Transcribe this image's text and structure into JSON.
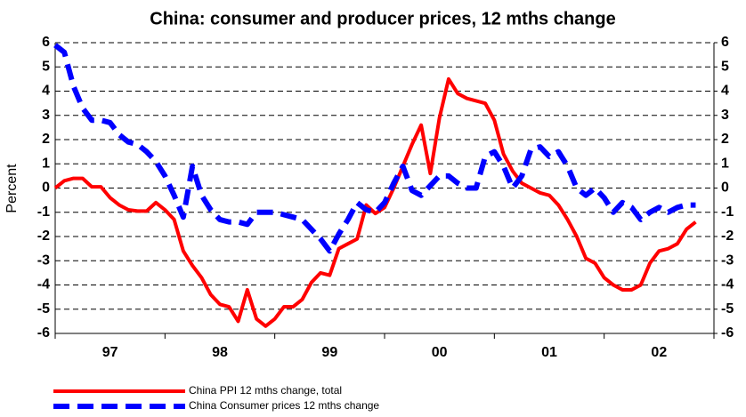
{
  "chart_data": {
    "type": "line",
    "title": "China: consumer and producer prices, 12 mths change",
    "y_label": "Percent",
    "categories": [
      null,
      null,
      null,
      null,
      null,
      null,
      "97",
      null,
      null,
      null,
      null,
      null,
      null,
      null,
      null,
      null,
      null,
      null,
      "98",
      null,
      null,
      null,
      null,
      null,
      null,
      null,
      null,
      null,
      null,
      null,
      "99",
      null,
      null,
      null,
      null,
      null,
      null,
      null,
      null,
      null,
      null,
      null,
      "00",
      null,
      null,
      null,
      null,
      null,
      null,
      null,
      null,
      null,
      null,
      null,
      "01",
      null,
      null,
      null,
      null,
      null,
      null,
      null,
      null,
      null,
      null,
      null,
      "02",
      null,
      null,
      null,
      null,
      null
    ],
    "series": [
      {
        "name": "China PPI 12 mths change, total",
        "color": "#ff0000",
        "dash": false,
        "values": [
          0,
          0.3,
          0.4,
          0.4,
          0.05,
          0.05,
          -0.4,
          -0.7,
          -0.9,
          -0.95,
          -0.95,
          -0.6,
          -0.9,
          -1.3,
          -2.6,
          -3.2,
          -3.7,
          -4.4,
          -4.8,
          -4.9,
          -5.5,
          -4.2,
          -5.4,
          -5.7,
          -5.4,
          -4.9,
          -4.9,
          -4.6,
          -3.9,
          -3.5,
          -3.6,
          -2.5,
          -2.3,
          -2.1,
          -0.7,
          -1.05,
          -0.8,
          0,
          0.9,
          1.8,
          2.6,
          0.6,
          2.9,
          4.5,
          3.9,
          3.7,
          3.6,
          3.5,
          2.8,
          1.4,
          0.7,
          0.2,
          0,
          -0.2,
          -0.3,
          -0.7,
          -1.3,
          -2,
          -2.9,
          -3.1,
          -3.7,
          -4,
          -4.2,
          -4.2,
          -4,
          -3.1,
          -2.6,
          -2.5,
          -2.3,
          -1.7,
          -1.4,
          null
        ]
      },
      {
        "name": "China Consumer prices 12 mths change",
        "color": "#0000ff",
        "dash": true,
        "values": [
          5.9,
          5.6,
          4.2,
          3.3,
          2.8,
          2.8,
          2.7,
          2.2,
          1.9,
          1.8,
          1.5,
          1.1,
          0.5,
          -0.3,
          -1.2,
          0.9,
          -0.3,
          -0.9,
          -1.3,
          -1.4,
          -1.4,
          -1.5,
          -1,
          -1,
          -1,
          -1.1,
          -1.2,
          -1.3,
          -1.7,
          -2.1,
          -2.6,
          -1.9,
          -1.3,
          -0.6,
          -0.9,
          -1,
          -0.6,
          0.2,
          0.9,
          -0.1,
          -0.3,
          0.1,
          0.5,
          0.5,
          0.2,
          0,
          0,
          1.3,
          1.5,
          0.9,
          0,
          0.5,
          1.6,
          1.7,
          1.3,
          1.5,
          0.9,
          0,
          -0.3,
          0,
          -0.4,
          -1,
          -0.6,
          -0.8,
          -1.3,
          -1,
          -0.8,
          -1,
          -0.8,
          -0.7,
          -0.7,
          null
        ]
      }
    ],
    "ylim": [
      -6,
      6
    ],
    "yticks": [
      -6,
      -5,
      -4,
      -3,
      -2,
      -1,
      0,
      1,
      2,
      3,
      4,
      5,
      6
    ],
    "y2lim": [
      -6,
      6
    ],
    "y2ticks": [
      -6,
      -5,
      -4,
      -3,
      -2,
      -1,
      0,
      1,
      2,
      3,
      4,
      5,
      6
    ],
    "grid": true,
    "legend": "bottom-left"
  }
}
